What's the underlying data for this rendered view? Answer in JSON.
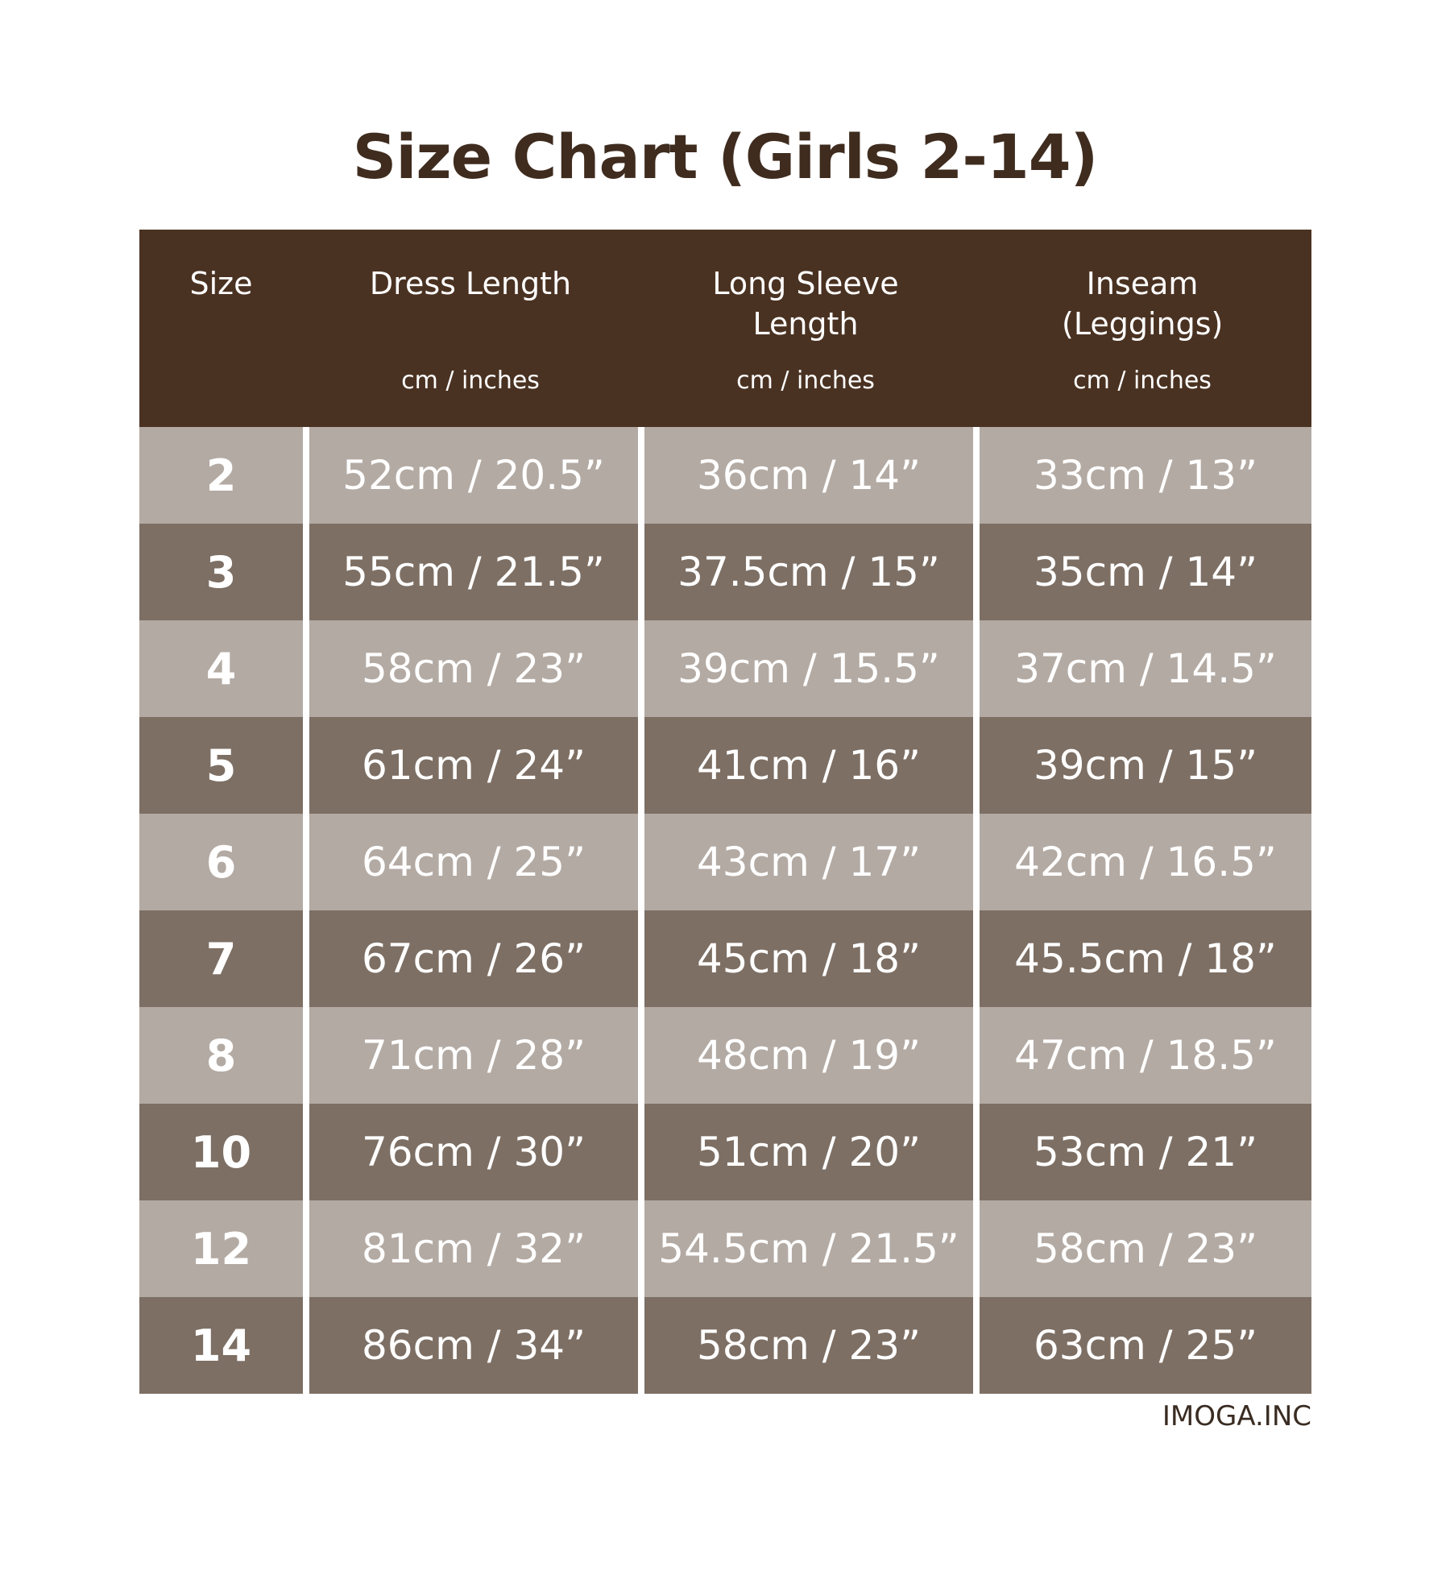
{
  "title": "Size Chart (Girls 2-14)",
  "colors": {
    "header": "#4a3222",
    "row_light": "#b3aaa3",
    "row_dark": "#7d6f64",
    "title": "#3f2c1f"
  },
  "columns": [
    {
      "name": "Size",
      "unit": ""
    },
    {
      "name": "Dress Length",
      "unit": "cm / inches"
    },
    {
      "name": "Long Sleeve Length",
      "unit": "cm / inches"
    },
    {
      "name": "Inseam (Leggings)",
      "unit": "cm / inches"
    }
  ],
  "rows": [
    [
      "2",
      "52cm / 20.5”",
      "36cm / 14”",
      "33cm / 13”"
    ],
    [
      "3",
      "55cm / 21.5”",
      "37.5cm / 15”",
      "35cm / 14”"
    ],
    [
      "4",
      "58cm / 23”",
      "39cm / 15.5”",
      "37cm / 14.5”"
    ],
    [
      "5",
      "61cm / 24”",
      "41cm / 16”",
      "39cm / 15”"
    ],
    [
      "6",
      "64cm / 25”",
      "43cm / 17”",
      "42cm / 16.5”"
    ],
    [
      "7",
      "67cm / 26”",
      "45cm / 18”",
      "45.5cm / 18”"
    ],
    [
      "8",
      "71cm / 28”",
      "48cm / 19”",
      "47cm / 18.5”"
    ],
    [
      "10",
      "76cm / 30”",
      "51cm / 20”",
      "53cm / 21”"
    ],
    [
      "12",
      "81cm / 32”",
      "54.5cm / 21.5”",
      "58cm / 23”"
    ],
    [
      "14",
      "86cm / 34”",
      "58cm / 23”",
      "63cm / 25”"
    ]
  ],
  "footer": "IMOGA.INC"
}
